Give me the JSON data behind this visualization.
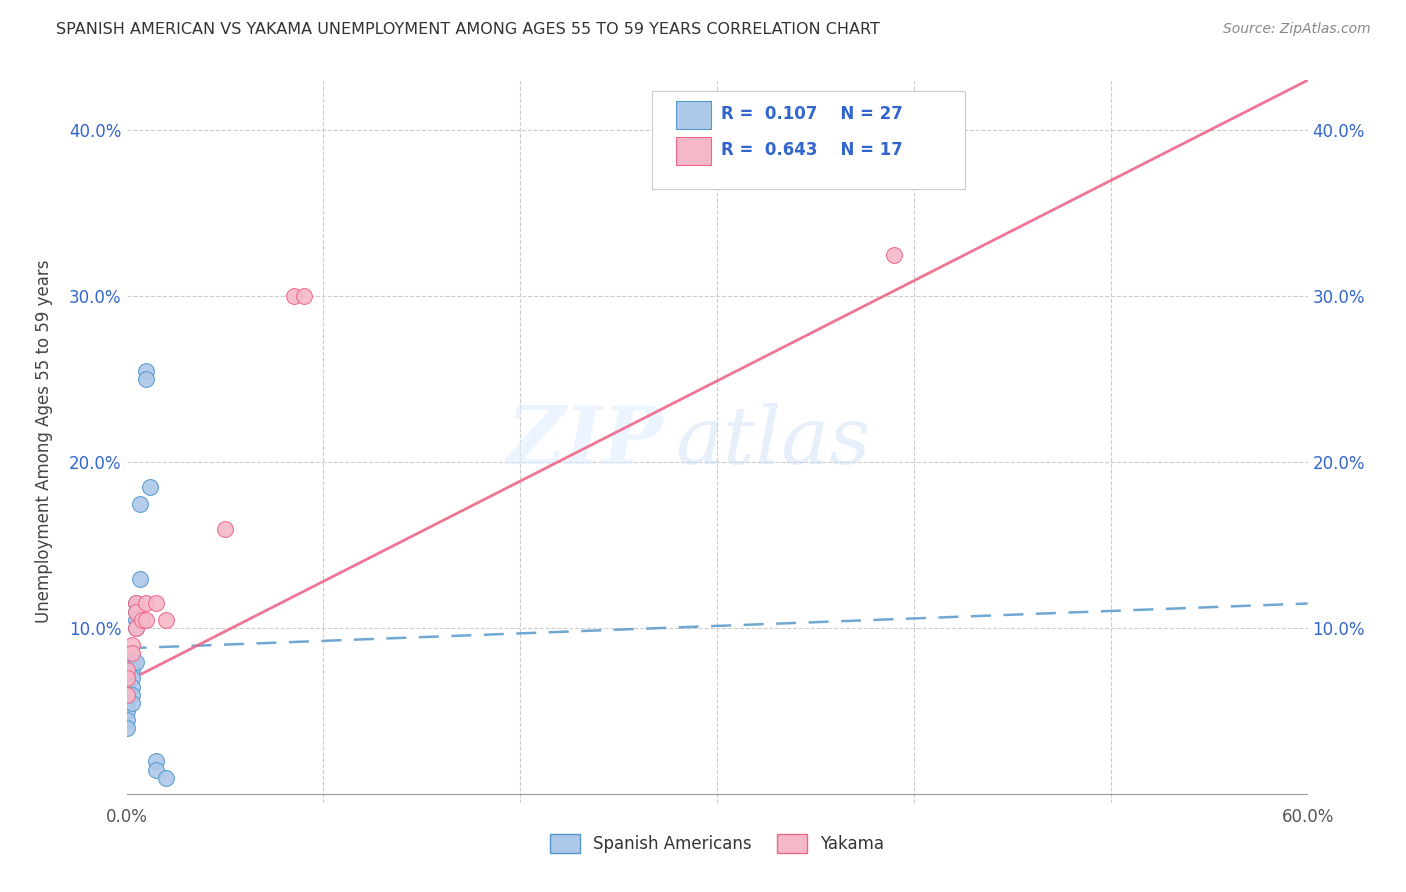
{
  "title": "SPANISH AMERICAN VS YAKAMA UNEMPLOYMENT AMONG AGES 55 TO 59 YEARS CORRELATION CHART",
  "source": "Source: ZipAtlas.com",
  "ylabel": "Unemployment Among Ages 55 to 59 years",
  "xlim": [
    0.0,
    0.6
  ],
  "ylim": [
    -0.005,
    0.43
  ],
  "xticks": [
    0.0,
    0.1,
    0.2,
    0.3,
    0.4,
    0.5,
    0.6
  ],
  "yticks": [
    0.0,
    0.1,
    0.2,
    0.3,
    0.4
  ],
  "spanish_R": 0.107,
  "spanish_N": 27,
  "yakama_R": 0.643,
  "yakama_N": 17,
  "spanish_color": "#adc8e8",
  "yakama_color": "#f5b8c8",
  "spanish_line_color": "#5599cc",
  "yakama_line_color": "#ee6688",
  "spanish_points_x": [
    0.0,
    0.0,
    0.0,
    0.0,
    0.0,
    0.0,
    0.0,
    0.0,
    0.003,
    0.003,
    0.003,
    0.003,
    0.003,
    0.003,
    0.005,
    0.005,
    0.005,
    0.005,
    0.005,
    0.007,
    0.007,
    0.01,
    0.01,
    0.012,
    0.015,
    0.015,
    0.02
  ],
  "spanish_points_y": [
    0.075,
    0.07,
    0.065,
    0.06,
    0.055,
    0.05,
    0.045,
    0.04,
    0.08,
    0.075,
    0.07,
    0.065,
    0.06,
    0.055,
    0.115,
    0.11,
    0.105,
    0.1,
    0.08,
    0.175,
    0.13,
    0.255,
    0.25,
    0.185,
    0.02,
    0.015,
    0.01
  ],
  "yakama_points_x": [
    0.0,
    0.0,
    0.0,
    0.003,
    0.003,
    0.005,
    0.005,
    0.005,
    0.008,
    0.01,
    0.01,
    0.015,
    0.02,
    0.05,
    0.085,
    0.09,
    0.39
  ],
  "yakama_points_y": [
    0.075,
    0.07,
    0.06,
    0.09,
    0.085,
    0.115,
    0.11,
    0.1,
    0.105,
    0.115,
    0.105,
    0.115,
    0.105,
    0.16,
    0.3,
    0.3,
    0.325
  ],
  "spanish_line_x": [
    0.0,
    0.6
  ],
  "spanish_line_y": [
    0.088,
    0.115
  ],
  "yakama_line_x": [
    0.0,
    0.6
  ],
  "yakama_line_y": [
    0.068,
    0.43
  ],
  "watermark_zip": "ZIP",
  "watermark_atlas": "atlas",
  "legend_title_color": "#3366cc",
  "background_color": "#ffffff",
  "grid_color": "#cccccc"
}
